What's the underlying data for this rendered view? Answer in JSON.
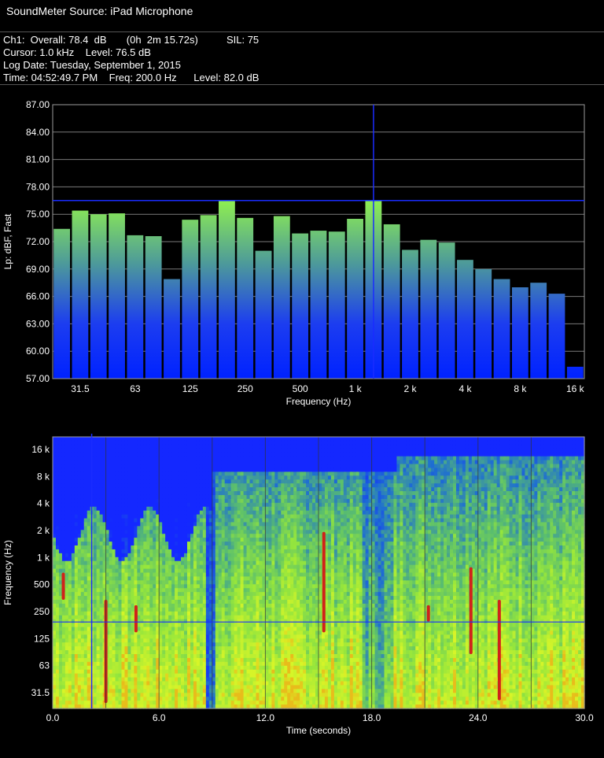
{
  "header": {
    "title": "SoundMeter Source:  iPad Microphone"
  },
  "info": {
    "line1": "Ch1:  Overall: 78.4  dB       (0h  2m 15.72s)          SIL: 75",
    "line2": "Cursor: 1.0 kHz    Level: 76.5 dB",
    "line3": "Log Date: Tuesday, September 1, 2015",
    "line4": "Time: 04:52:49.7 PM    Freq: 200.0 Hz      Level: 82.0 dB"
  },
  "colors": {
    "bar_top": "#a6ff3e",
    "bar_bottom": "#0022ff",
    "cursor": "#1a2cff",
    "grid": "#7a7a7a",
    "frame": "#9a9a9a"
  },
  "chart_data": [
    {
      "type": "bar",
      "xlabel": "Frequency (Hz)",
      "ylabel": "Lp: dBF, Fast",
      "ylim": [
        57,
        87
      ],
      "yticks": [
        "87.00",
        "84.00",
        "81.00",
        "78.00",
        "75.00",
        "72.00",
        "69.00",
        "66.00",
        "63.00",
        "60.00",
        "57.00"
      ],
      "xticks": [
        "31.5",
        "63",
        "125",
        "250",
        "500",
        "1 k",
        "2 k",
        "4 k",
        "8 k",
        "16 k"
      ],
      "values": [
        73.4,
        75.4,
        75.0,
        75.1,
        72.7,
        72.6,
        67.9,
        74.4,
        74.9,
        76.5,
        74.6,
        71.0,
        74.8,
        72.9,
        73.2,
        73.1,
        74.5,
        76.5,
        73.9,
        71.1,
        72.2,
        71.9,
        70.0,
        69.0,
        67.9,
        67.0,
        67.5,
        66.3,
        58.3
      ],
      "cursor_frequency": "1.0 kHz",
      "cursor_level": 76.5,
      "cursor_index": 17,
      "grid": true
    },
    {
      "type": "heatmap",
      "xlabel": "Time (seconds)",
      "ylabel": "Frequency (Hz)",
      "xlim": [
        0,
        30
      ],
      "xticks": [
        "0.0",
        "6.0",
        "12.0",
        "18.0",
        "24.0",
        "30.0"
      ],
      "yticks": [
        "16 k",
        "8 k",
        "4 k",
        "2 k",
        "1 k",
        "500",
        "250",
        "125",
        "63",
        "31.5"
      ],
      "cursor_time": 2.2,
      "cursor_frequency": "200.0 Hz",
      "grid": true
    }
  ]
}
